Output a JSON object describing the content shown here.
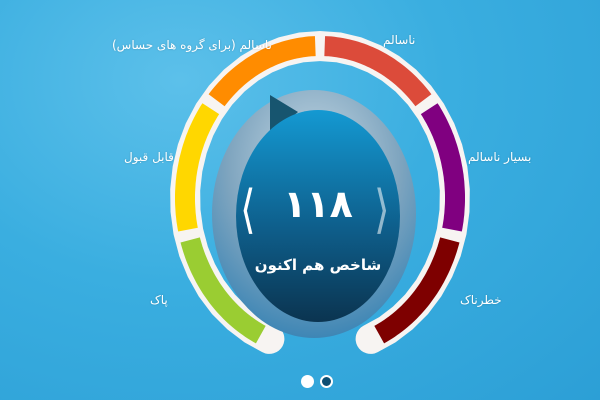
{
  "gauge": {
    "value": "۱۱۸",
    "caption": "شاخص هم اکنون",
    "prev_icon": "chevron-left-icon",
    "next_icon": "chevron-right-icon",
    "segments": [
      {
        "label": "پاک",
        "color": "#9acd32"
      },
      {
        "label": "قابل قبول",
        "color": "#ffd700"
      },
      {
        "label": "ناسالم (برای گروه های حساس)",
        "color": "#ff8c00"
      },
      {
        "label": "ناسالم",
        "color": "#dc4b3a"
      },
      {
        "label": "بسیار ناسالم",
        "color": "#800080"
      },
      {
        "label": "خطرناک",
        "color": "#7e0000"
      }
    ],
    "active_segment": "ناسالم (برای گروه های حساس)"
  },
  "pager": {
    "pages": 2,
    "current": 1
  }
}
